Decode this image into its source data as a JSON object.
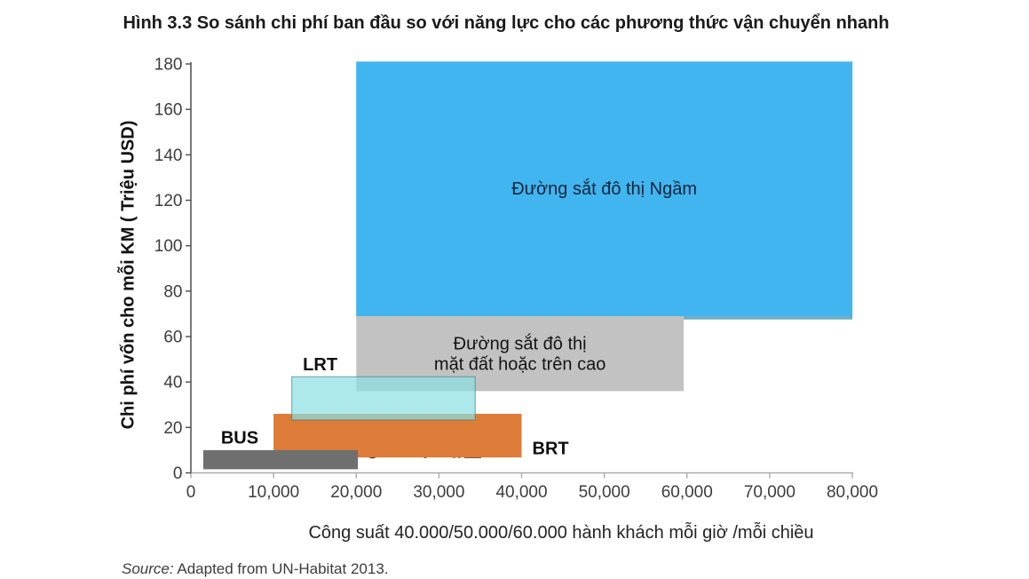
{
  "figure_title": "Hình 3.3 So sánh chi phí ban đầu so với năng lực cho các phương thức vận chuyển nhanh",
  "source_note": {
    "prefix": "Source:",
    "text": " Adapted from UN-Habitat 2013."
  },
  "chart_data": {
    "type": "area",
    "subtype": "range-rectangles",
    "title": "Hình 3.3 So sánh chi phí ban đầu so với năng lực cho các phương thức vận chuyển nhanh",
    "xlabel": "Công suất 40.000/50.000/60.000 hành khách mỗi giờ /mỗi chiều",
    "ylabel": "Chi phí vốn cho mỗi KM ( Triệu USD)",
    "xlim": [
      0,
      80000
    ],
    "ylim": [
      0,
      180
    ],
    "grid": false,
    "legend": false,
    "x_ticks": [
      {
        "value": 0,
        "label": "0"
      },
      {
        "value": 10000,
        "label": "10,000"
      },
      {
        "value": 20000,
        "label": "20,000"
      },
      {
        "value": 30000,
        "label": "30,000"
      },
      {
        "value": 40000,
        "label": "40,000"
      },
      {
        "value": 50000,
        "label": "50,000"
      },
      {
        "value": 60000,
        "label": "60,000"
      },
      {
        "value": 70000,
        "label": "70,000"
      },
      {
        "value": 80000,
        "label": "80,000"
      }
    ],
    "y_ticks": [
      {
        "value": 0,
        "label": "0"
      },
      {
        "value": 20,
        "label": "20"
      },
      {
        "value": 40,
        "label": "40"
      },
      {
        "value": 60,
        "label": "60"
      },
      {
        "value": 80,
        "label": "80"
      },
      {
        "value": 100,
        "label": "100"
      },
      {
        "value": 120,
        "label": "120"
      },
      {
        "value": 140,
        "label": "140"
      },
      {
        "value": 160,
        "label": "160"
      },
      {
        "value": 180,
        "label": "180"
      }
    ],
    "series": [
      {
        "id": "metro-underground",
        "label": "Đường sắt đô thị Ngầm",
        "x_range": [
          20000,
          80000
        ],
        "y_range": [
          67.5,
          181
        ],
        "color": "#41b5f0",
        "bottom_edge_color": "#6fb0c6",
        "bottom_edge_units": 1.5,
        "label_placement": "inside-center",
        "label_color": "#10243a",
        "label_bold": false
      },
      {
        "id": "rail-at-grade-or-elevated",
        "label": "Đường sắt đô thị mặt đất hoặc trên cao",
        "label_lines": [
          "Đường sắt đô thị",
          "mặt đất hoặc trên cao"
        ],
        "x_range": [
          20000,
          59600
        ],
        "y_range": [
          36,
          69
        ],
        "color": "#c2c2c2",
        "label_placement": "inside-center",
        "label_color": "#141414",
        "label_bold": false
      },
      {
        "id": "brt",
        "label": "BRT",
        "x_range": [
          10000,
          40000
        ],
        "y_range": [
          6.8,
          26
        ],
        "color": "#dd7b38",
        "label_placement": "outside-right",
        "label_color": "#0d0d0d",
        "label_bold": true
      },
      {
        "id": "bus",
        "label": "BUS",
        "x_range": [
          1500,
          20200
        ],
        "y_range": [
          1.6,
          10
        ],
        "color": "#6f6f6f",
        "label_placement": "above-left",
        "label_color": "#0d0d0d",
        "label_bold": true
      },
      {
        "id": "lrt",
        "label": "LRT",
        "x_range": [
          12200,
          34400
        ],
        "y_range": [
          23.3,
          42.3
        ],
        "color": "rgba(138,224,226,0.70)",
        "border_color": "rgba(70,122,132,0.55)",
        "label_placement": "above-left",
        "label_color": "#0d0d0d",
        "label_bold": true
      }
    ]
  }
}
